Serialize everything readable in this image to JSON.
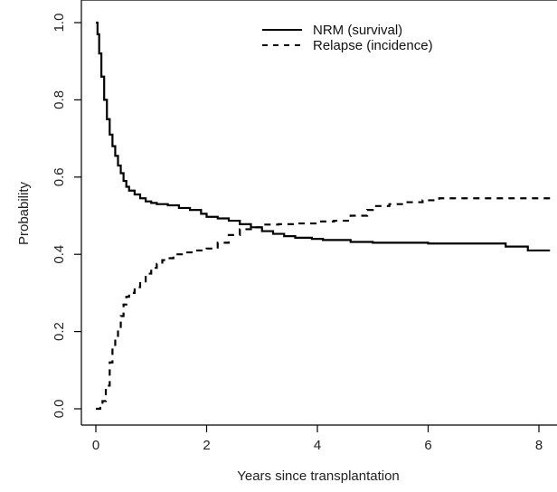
{
  "chart_data": {
    "type": "line",
    "title": "",
    "xlabel": "Years since transplantation",
    "ylabel": "Probability",
    "xlim": [
      0,
      8.2
    ],
    "ylim": [
      0,
      1.0
    ],
    "x_ticks": [
      0,
      2,
      4,
      6,
      8
    ],
    "y_ticks": [
      0.0,
      0.2,
      0.4,
      0.6,
      0.8,
      1.0
    ],
    "x_tick_labels": [
      "0",
      "2",
      "4",
      "6",
      "8"
    ],
    "y_tick_labels": [
      "0.0",
      "0.2",
      "0.4",
      "0.6",
      "0.8",
      "1.0"
    ],
    "grid": false,
    "legend_position": "top-center",
    "series": [
      {
        "name": "NRM (survival)",
        "style": "solid",
        "color": "#000000",
        "points": [
          [
            0.0,
            1.0
          ],
          [
            0.03,
            0.97
          ],
          [
            0.06,
            0.92
          ],
          [
            0.1,
            0.86
          ],
          [
            0.15,
            0.8
          ],
          [
            0.2,
            0.75
          ],
          [
            0.25,
            0.71
          ],
          [
            0.3,
            0.68
          ],
          [
            0.35,
            0.655
          ],
          [
            0.4,
            0.63
          ],
          [
            0.45,
            0.61
          ],
          [
            0.5,
            0.59
          ],
          [
            0.55,
            0.575
          ],
          [
            0.6,
            0.565
          ],
          [
            0.7,
            0.555
          ],
          [
            0.8,
            0.545
          ],
          [
            0.9,
            0.537
          ],
          [
            1.0,
            0.533
          ],
          [
            1.1,
            0.53
          ],
          [
            1.3,
            0.527
          ],
          [
            1.5,
            0.52
          ],
          [
            1.7,
            0.515
          ],
          [
            1.9,
            0.505
          ],
          [
            2.0,
            0.497
          ],
          [
            2.2,
            0.493
          ],
          [
            2.4,
            0.487
          ],
          [
            2.6,
            0.478
          ],
          [
            2.8,
            0.47
          ],
          [
            3.0,
            0.46
          ],
          [
            3.2,
            0.453
          ],
          [
            3.4,
            0.447
          ],
          [
            3.6,
            0.443
          ],
          [
            3.9,
            0.44
          ],
          [
            4.1,
            0.437
          ],
          [
            4.6,
            0.432
          ],
          [
            5.0,
            0.43
          ],
          [
            6.0,
            0.428
          ],
          [
            7.0,
            0.428
          ],
          [
            7.4,
            0.42
          ],
          [
            7.8,
            0.41
          ],
          [
            8.2,
            0.41
          ]
        ]
      },
      {
        "name": "Relapse (incidence)",
        "style": "dashed",
        "color": "#000000",
        "points": [
          [
            0.0,
            0.0
          ],
          [
            0.08,
            0.005
          ],
          [
            0.12,
            0.02
          ],
          [
            0.18,
            0.06
          ],
          [
            0.25,
            0.12
          ],
          [
            0.3,
            0.16
          ],
          [
            0.35,
            0.185
          ],
          [
            0.4,
            0.205
          ],
          [
            0.45,
            0.24
          ],
          [
            0.5,
            0.27
          ],
          [
            0.55,
            0.29
          ],
          [
            0.6,
            0.3
          ],
          [
            0.7,
            0.315
          ],
          [
            0.8,
            0.33
          ],
          [
            0.9,
            0.35
          ],
          [
            1.0,
            0.365
          ],
          [
            1.1,
            0.375
          ],
          [
            1.2,
            0.385
          ],
          [
            1.3,
            0.39
          ],
          [
            1.4,
            0.4
          ],
          [
            1.6,
            0.405
          ],
          [
            1.8,
            0.41
          ],
          [
            2.0,
            0.415
          ],
          [
            2.2,
            0.43
          ],
          [
            2.4,
            0.45
          ],
          [
            2.6,
            0.465
          ],
          [
            2.8,
            0.47
          ],
          [
            3.0,
            0.477
          ],
          [
            3.3,
            0.478
          ],
          [
            3.6,
            0.48
          ],
          [
            4.0,
            0.485
          ],
          [
            4.3,
            0.487
          ],
          [
            4.6,
            0.5
          ],
          [
            4.9,
            0.515
          ],
          [
            5.0,
            0.525
          ],
          [
            5.3,
            0.53
          ],
          [
            5.6,
            0.535
          ],
          [
            5.9,
            0.54
          ],
          [
            6.2,
            0.545
          ],
          [
            7.0,
            0.545
          ],
          [
            8.2,
            0.545
          ]
        ]
      }
    ]
  }
}
